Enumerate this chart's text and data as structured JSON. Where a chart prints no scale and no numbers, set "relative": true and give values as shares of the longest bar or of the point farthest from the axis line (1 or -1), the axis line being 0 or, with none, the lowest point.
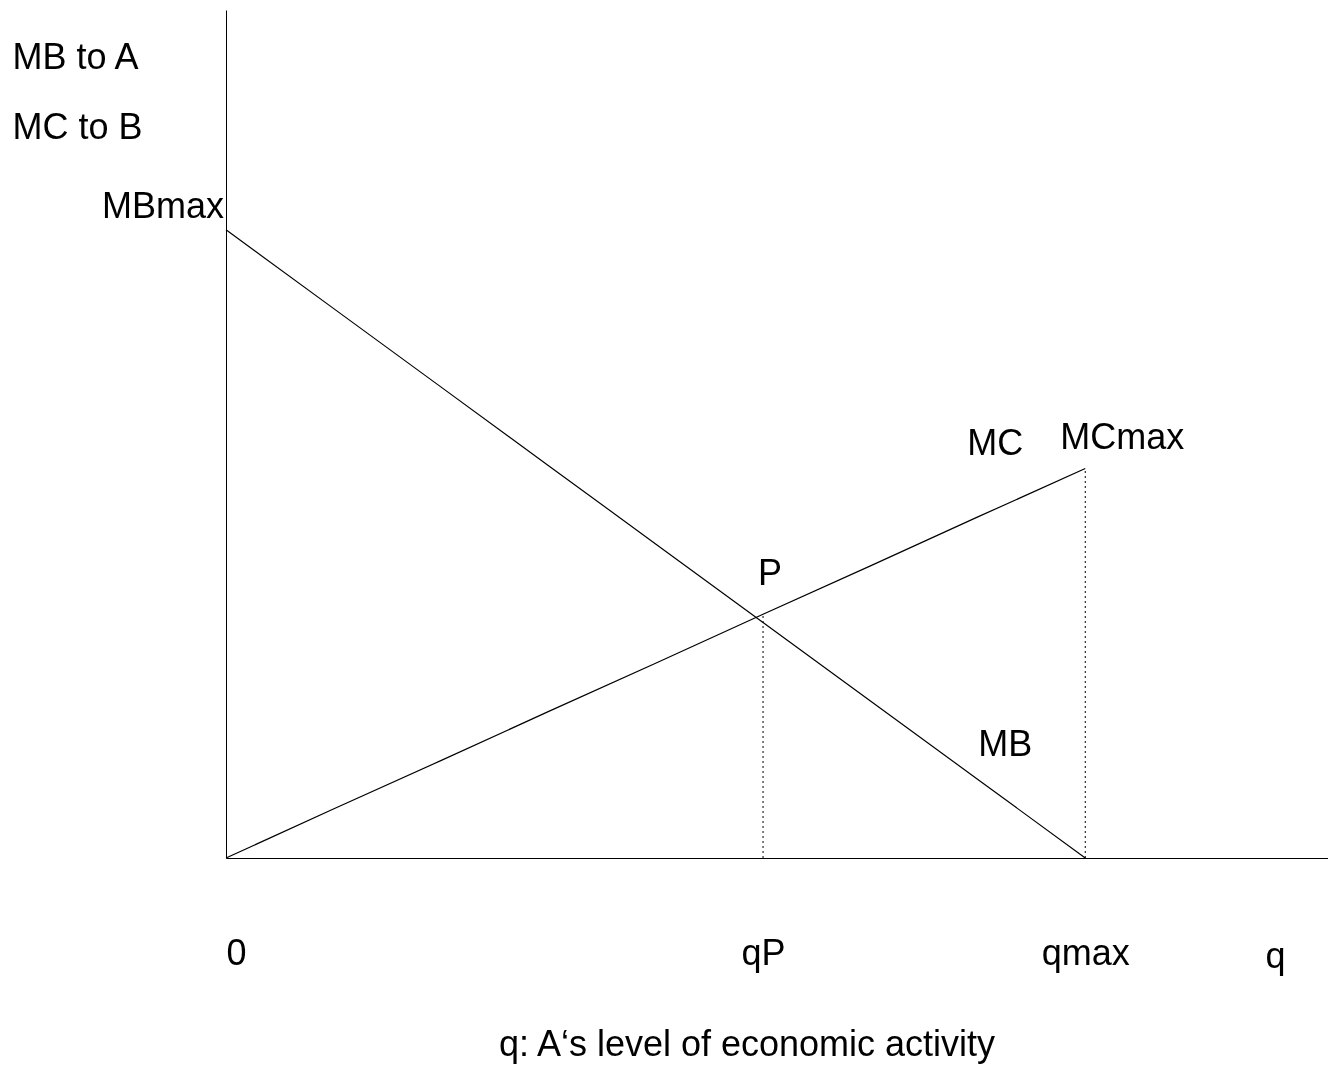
{
  "chart_data": {
    "type": "line",
    "relative": true,
    "ylabel": "MB to A\nMC to B",
    "xlabel": "q",
    "categories": [
      "0",
      null,
      null,
      null,
      null,
      "qP",
      null,
      null,
      "qmax",
      null,
      null
    ],
    "series": [
      {
        "name": "MB",
        "color": "#000000",
        "values": [
          1,
          0.875,
          0.75,
          0.625,
          0.5,
          0.375,
          0.25,
          0.125,
          0,
          null,
          null
        ]
      },
      {
        "name": "MC",
        "color": "#000000",
        "values": [
          0,
          0.078,
          0.155,
          0.233,
          0.31,
          0.388,
          0.465,
          0.543,
          0.62,
          null,
          null
        ]
      }
    ],
    "ref_lines": [
      {
        "axis": "x",
        "value": "qP",
        "line_style": "dotted",
        "color": "#000000"
      },
      {
        "axis": "x",
        "value": "qmax",
        "line_style": "dotted",
        "color": "#000000"
      }
    ],
    "annotations": [
      {
        "text": "MBmax",
        "x": "0",
        "y": 1
      },
      {
        "text": "MCmax",
        "x": "qmax",
        "y": 0.62
      },
      {
        "text": "P",
        "x": "qP",
        "y": 0.38
      },
      "q: A‘s level of economic activity"
    ]
  }
}
